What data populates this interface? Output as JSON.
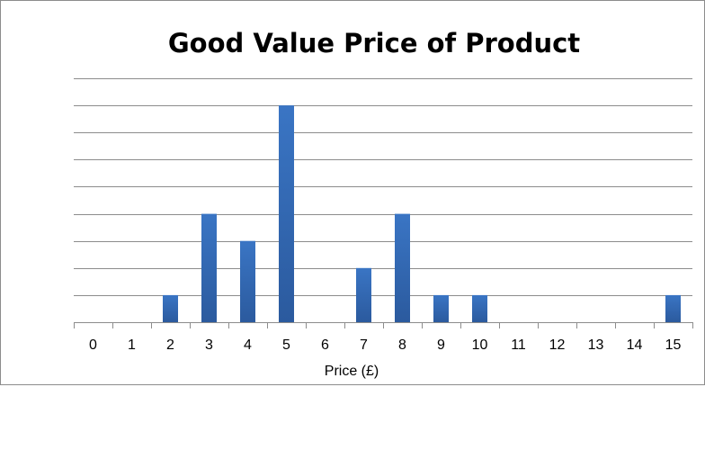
{
  "chart_data": {
    "type": "bar",
    "title": "Good Value Price of Product",
    "xlabel": "Price (£)",
    "ylabel": "",
    "categories": [
      "0",
      "1",
      "2",
      "3",
      "4",
      "5",
      "6",
      "7",
      "8",
      "9",
      "10",
      "11",
      "12",
      "13",
      "14",
      "15"
    ],
    "values": [
      0,
      0,
      1,
      4,
      3,
      8,
      0,
      2,
      4,
      1,
      1,
      0,
      0,
      0,
      0,
      1
    ],
    "ylim": [
      0,
      9
    ],
    "y_tick_step": 1,
    "grid": true,
    "y_tick_labels_visible": false,
    "bar_color": "#3a75c4",
    "bar_color_dark": "#2b5a9e"
  }
}
